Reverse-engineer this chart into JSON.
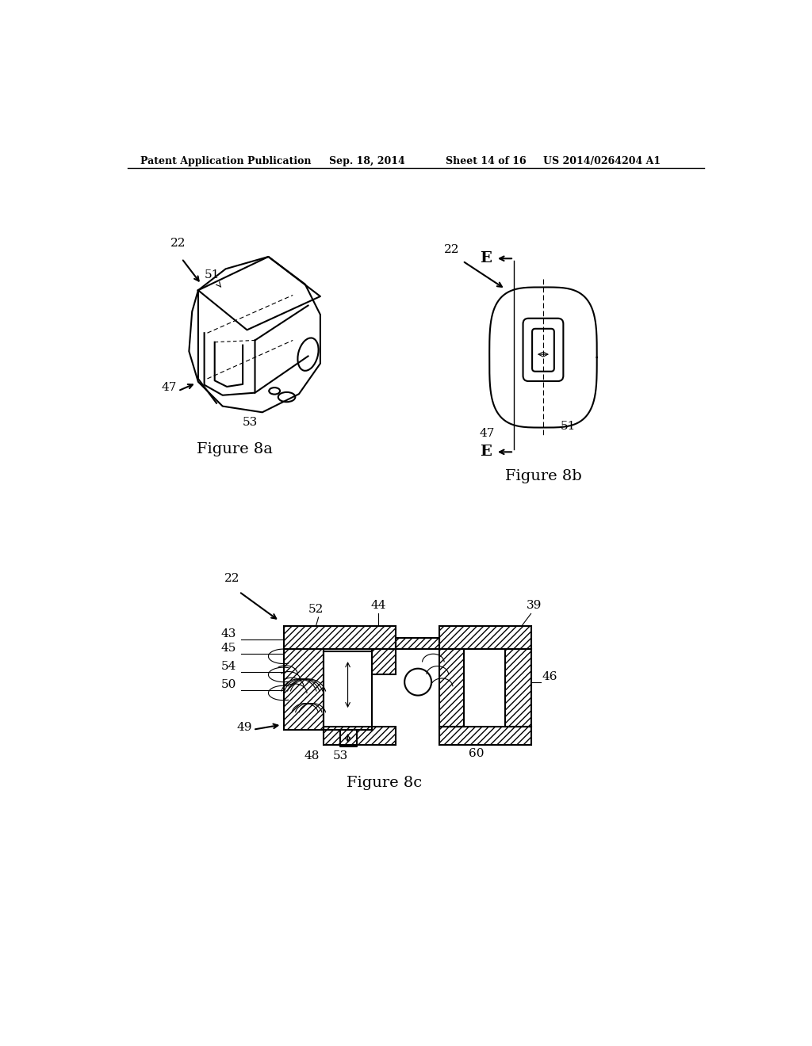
{
  "background_color": "#ffffff",
  "header_text": "Patent Application Publication",
  "header_date": "Sep. 18, 2014",
  "header_sheet": "Sheet 14 of 16",
  "header_patent": "US 2014/0264204 A1",
  "fig8a_caption": "Figure 8a",
  "fig8b_caption": "Figure 8b",
  "fig8c_caption": "Figure 8c",
  "line_color": "#000000",
  "hatch_color": "#000000",
  "line_width": 1.5,
  "thin_line": 0.8
}
